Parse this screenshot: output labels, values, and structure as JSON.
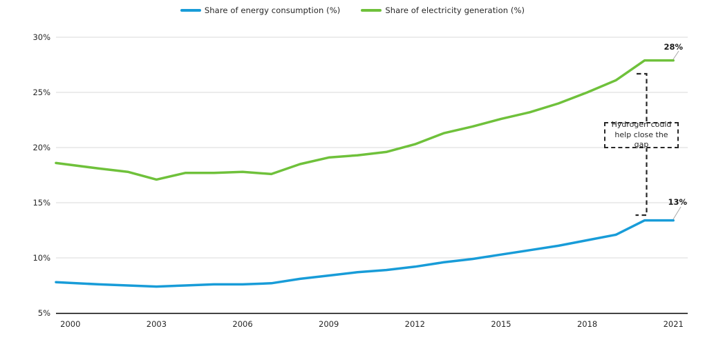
{
  "colors": {
    "energy_line": "#189cd8",
    "electricity_line": "#6fc13b",
    "grid": "#d9d9d9",
    "axis": "#000000",
    "text": "#262626",
    "leader": "#a6a6a6",
    "annotation_border": "#262626"
  },
  "legend": {
    "items": [
      {
        "label": "Share of energy consumption (%)",
        "color": "#189cd8"
      },
      {
        "label": "Share of electricity generation (%)",
        "color": "#6fc13b"
      }
    ]
  },
  "annotation": {
    "text": "Hydrogen could help close the gap"
  },
  "end_labels": {
    "electricity": "28%",
    "energy": "13%"
  },
  "chart_data": {
    "type": "line",
    "title": "",
    "xlabel": "",
    "ylabel": "",
    "x": [
      2000,
      2001,
      2002,
      2003,
      2004,
      2005,
      2006,
      2007,
      2008,
      2009,
      2010,
      2011,
      2012,
      2013,
      2014,
      2015,
      2016,
      2017,
      2018,
      2019,
      2020,
      2021
    ],
    "series": [
      {
        "name": "Share of energy consumption (%)",
        "color": "#189cd8",
        "values": [
          7.8,
          7.6,
          7.5,
          7.4,
          7.5,
          7.6,
          7.6,
          7.7,
          8.1,
          8.4,
          8.7,
          8.9,
          9.2,
          9.6,
          9.9,
          10.3,
          10.7,
          11.1,
          11.6,
          12.1,
          13.4,
          13.4
        ]
      },
      {
        "name": "Share of electricity generation (%)",
        "color": "#6fc13b",
        "values": [
          18.6,
          18.1,
          17.8,
          17.1,
          17.7,
          17.7,
          17.8,
          17.6,
          18.5,
          19.1,
          19.3,
          19.6,
          20.3,
          21.3,
          21.9,
          22.6,
          23.2,
          24.0,
          25.0,
          26.1,
          27.9,
          27.9
        ]
      }
    ],
    "ylim": [
      5,
      30
    ],
    "ytick_values": [
      5,
      10,
      15,
      20,
      25,
      30
    ],
    "ytick_labels": [
      "5%",
      "10%",
      "15%",
      "20%",
      "25%",
      "30%"
    ],
    "xtick_values": [
      2000,
      2003,
      2006,
      2009,
      2012,
      2015,
      2018,
      2021
    ],
    "xtick_labels": [
      "2000",
      "2003",
      "2006",
      "2009",
      "2012",
      "2015",
      "2018",
      "2021"
    ],
    "grid": "horizontal",
    "legend_position": "top"
  }
}
